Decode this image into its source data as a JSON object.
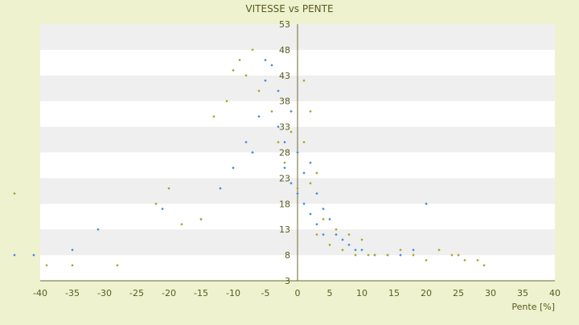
{
  "chart_data": {
    "type": "scatter",
    "title": "VITESSE vs PENTE",
    "xlabel": "Pente [%]",
    "ylabel": "",
    "xlim": [
      -40,
      40
    ],
    "ylim": [
      3,
      53
    ],
    "x_ticks": [
      "-40",
      "-35",
      "-30",
      "-25",
      "-20",
      "-15",
      "-10",
      "-5",
      "0",
      "5",
      "10",
      "15",
      "20",
      "25",
      "30",
      "35",
      "40"
    ],
    "y_ticks": [
      "3",
      "8",
      "13",
      "18",
      "23",
      "28",
      "33",
      "38",
      "43",
      "48",
      "53"
    ],
    "grid": "horizontal bands",
    "colors": {
      "background": "#eef2cf",
      "plot_band_light": "#ffffff",
      "plot_band_dark": "#efefef",
      "series_a": "#3f8ad6",
      "series_b": "#a7a422",
      "text": "#5a5a1e"
    },
    "series": [
      {
        "color": "#3f8ad6",
        "points": [
          [
            -44,
            8
          ],
          [
            -41,
            8
          ],
          [
            -35,
            9
          ],
          [
            -31,
            13
          ],
          [
            -21,
            17
          ],
          [
            -15,
            15
          ],
          [
            -12,
            21
          ],
          [
            -10,
            25
          ],
          [
            -8,
            30
          ],
          [
            -7,
            28
          ],
          [
            -6,
            35
          ],
          [
            -5,
            42
          ],
          [
            -5,
            46
          ],
          [
            -4,
            45
          ],
          [
            -3,
            40
          ],
          [
            -3,
            33
          ],
          [
            -2,
            30
          ],
          [
            -2,
            25
          ],
          [
            -1,
            36
          ],
          [
            -1,
            22
          ],
          [
            0,
            28
          ],
          [
            0,
            20
          ],
          [
            1,
            24
          ],
          [
            1,
            18
          ],
          [
            2,
            26
          ],
          [
            2,
            16
          ],
          [
            3,
            20
          ],
          [
            3,
            14
          ],
          [
            4,
            17
          ],
          [
            4,
            12
          ],
          [
            5,
            15
          ],
          [
            6,
            12
          ],
          [
            7,
            11
          ],
          [
            8,
            10
          ],
          [
            9,
            9
          ],
          [
            10,
            9
          ],
          [
            12,
            8
          ],
          [
            14,
            8
          ],
          [
            16,
            8
          ],
          [
            18,
            9
          ],
          [
            20,
            18
          ]
        ]
      },
      {
        "color": "#a7a422",
        "points": [
          [
            -44,
            20
          ],
          [
            -39,
            6
          ],
          [
            -35,
            6
          ],
          [
            -28,
            6
          ],
          [
            -22,
            18
          ],
          [
            -20,
            21
          ],
          [
            -18,
            14
          ],
          [
            -15,
            15
          ],
          [
            -13,
            35
          ],
          [
            -11,
            38
          ],
          [
            -10,
            44
          ],
          [
            -9,
            46
          ],
          [
            -8,
            43
          ],
          [
            -7,
            48
          ],
          [
            -6,
            40
          ],
          [
            -4,
            36
          ],
          [
            -3,
            30
          ],
          [
            -2,
            26
          ],
          [
            -1,
            32
          ],
          [
            0,
            21
          ],
          [
            1,
            30
          ],
          [
            1,
            42
          ],
          [
            2,
            36
          ],
          [
            2,
            22
          ],
          [
            3,
            24
          ],
          [
            3,
            12
          ],
          [
            4,
            15
          ],
          [
            5,
            10
          ],
          [
            6,
            13
          ],
          [
            7,
            9
          ],
          [
            8,
            12
          ],
          [
            9,
            8
          ],
          [
            10,
            11
          ],
          [
            11,
            8
          ],
          [
            12,
            8
          ],
          [
            14,
            8
          ],
          [
            16,
            9
          ],
          [
            18,
            8
          ],
          [
            20,
            7
          ],
          [
            22,
            9
          ],
          [
            24,
            8
          ],
          [
            25,
            8
          ],
          [
            26,
            7
          ],
          [
            28,
            7
          ],
          [
            29,
            6
          ]
        ]
      }
    ]
  }
}
